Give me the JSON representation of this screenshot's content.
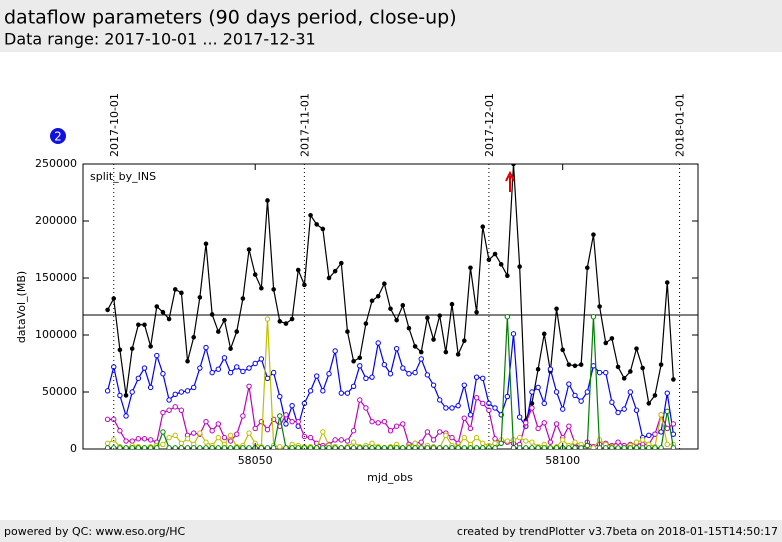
{
  "header": {
    "title": "dataflow parameters (90 days period, close-up)",
    "subtitle": "Data range: 2017-10-01 ... 2017-12-31"
  },
  "badge": "2",
  "footer": {
    "left": "powered by QC: www.eso.org/HC",
    "right": "created by trendPlotter v3.7beta on 2018-01-15T14:50:17"
  },
  "chart_data": {
    "type": "line",
    "xlabel": "mjd_obs",
    "ylabel": "dataVol_(MB)",
    "annotation": "split_by_INS",
    "xlim": [
      58022,
      58122
    ],
    "xticks": [
      58050,
      58100
    ],
    "ylim": [
      0,
      250000
    ],
    "yticks": [
      0,
      50000,
      100000,
      150000,
      200000,
      250000
    ],
    "hline": 117500,
    "date_markers": [
      {
        "label": "2017-10-01",
        "x": 58027
      },
      {
        "label": "2017-11-01",
        "x": 58058
      },
      {
        "label": "2017-12-01",
        "x": 58088
      },
      {
        "label": "2018-01-01",
        "x": 58119
      }
    ],
    "x": [
      58026,
      58027,
      58028,
      58029,
      58030,
      58031,
      58032,
      58033,
      58034,
      58035,
      58036,
      58037,
      58038,
      58039,
      58040,
      58041,
      58042,
      58043,
      58044,
      58045,
      58046,
      58047,
      58048,
      58049,
      58050,
      58051,
      58052,
      58053,
      58054,
      58055,
      58056,
      58057,
      58058,
      58059,
      58060,
      58061,
      58062,
      58063,
      58064,
      58065,
      58066,
      58067,
      58068,
      58069,
      58070,
      58071,
      58072,
      58073,
      58074,
      58075,
      58076,
      58077,
      58078,
      58079,
      58080,
      58081,
      58082,
      58083,
      58084,
      58085,
      58086,
      58087,
      58088,
      58089,
      58090,
      58091,
      58092,
      58093,
      58094,
      58095,
      58096,
      58097,
      58098,
      58099,
      58100,
      58101,
      58102,
      58103,
      58104,
      58105,
      58106,
      58107,
      58108,
      58109,
      58110,
      58111,
      58112,
      58113,
      58114,
      58115,
      58116,
      58117,
      58118
    ],
    "series": [
      {
        "color": "#000000",
        "filled": true,
        "values": [
          122000,
          132000,
          87000,
          47000,
          88000,
          109000,
          109000,
          90000,
          125000,
          120000,
          114000,
          140000,
          137000,
          77000,
          98000,
          133000,
          180000,
          118000,
          103000,
          113000,
          88000,
          103000,
          132000,
          175000,
          153000,
          141000,
          218000,
          140000,
          112000,
          110000,
          114000,
          157000,
          144000,
          205000,
          197000,
          193000,
          150000,
          156000,
          163000,
          103000,
          77000,
          80000,
          110000,
          130000,
          134000,
          145000,
          123000,
          113000,
          126000,
          106000,
          90000,
          85000,
          115000,
          96000,
          117000,
          85000,
          127000,
          83000,
          95000,
          159000,
          120000,
          195000,
          166000,
          171000,
          162000,
          152000,
          250000,
          160000,
          25000,
          40000,
          70000,
          101000,
          68000,
          123000,
          87000,
          74000,
          73000,
          74000,
          159000,
          188000,
          125000,
          93000,
          97000,
          72000,
          62000,
          68000,
          88000,
          71000,
          40000,
          47000,
          74000,
          146000,
          61000
        ]
      },
      {
        "color": "#0000ff",
        "filled": false,
        "values": [
          51000,
          72000,
          47000,
          29000,
          50000,
          62000,
          71000,
          54000,
          82000,
          66000,
          43000,
          48000,
          50000,
          51000,
          54000,
          71000,
          89000,
          67000,
          70000,
          80000,
          67000,
          72000,
          68000,
          71000,
          75000,
          79000,
          62000,
          67000,
          46000,
          22000,
          38000,
          20000,
          40000,
          51000,
          64000,
          51000,
          66000,
          86000,
          49000,
          49000,
          55000,
          73000,
          62000,
          63000,
          93000,
          74000,
          66000,
          88000,
          71000,
          66000,
          67000,
          79000,
          65000,
          56000,
          43000,
          36000,
          36000,
          38000,
          56000,
          30000,
          63000,
          62000,
          40000,
          36000,
          30000,
          46000,
          101000,
          28000,
          20000,
          50000,
          54000,
          40000,
          70000,
          50000,
          35000,
          57000,
          47000,
          42000,
          50000,
          73000,
          67000,
          67000,
          41000,
          32000,
          35000,
          50000,
          34000,
          10000,
          12000,
          13000,
          15000,
          49000,
          13000
        ]
      },
      {
        "color": "#bf00bf",
        "filled": false,
        "values": [
          26000,
          26000,
          16000,
          7000,
          7000,
          9000,
          9000,
          8000,
          6000,
          32000,
          34000,
          37000,
          34000,
          12000,
          14000,
          13000,
          24000,
          16000,
          22000,
          10000,
          7000,
          13000,
          29000,
          55000,
          18000,
          24000,
          17000,
          26000,
          20000,
          30000,
          24000,
          24000,
          11000,
          10000,
          5000,
          3000,
          4000,
          8000,
          8000,
          7000,
          16000,
          43000,
          36000,
          24000,
          23000,
          24000,
          16000,
          20000,
          22000,
          4000,
          5000,
          6000,
          15000,
          8000,
          15000,
          14000,
          10000,
          5000,
          27000,
          18000,
          45000,
          40000,
          34000,
          9000,
          6000,
          6000,
          5000,
          4000,
          23000,
          36000,
          18000,
          23000,
          6000,
          22000,
          10000,
          20000,
          5000,
          0,
          6000,
          2000,
          4000,
          5000,
          3000,
          6000,
          3000,
          4000,
          5000,
          4000,
          4000,
          13000,
          30000,
          18000,
          22000
        ]
      },
      {
        "color": "#bfbf00",
        "filled": false,
        "values": [
          5000,
          8000,
          2000,
          1000,
          3000,
          2000,
          1000,
          2000,
          3000,
          4000,
          10000,
          12000,
          5000,
          9000,
          4000,
          14000,
          6000,
          3000,
          10000,
          4000,
          12000,
          2000,
          3000,
          14000,
          5000,
          2000,
          114000,
          3000,
          2000,
          1000,
          4000,
          3000,
          2000,
          2000,
          1000,
          15000,
          3000,
          2000,
          1000,
          2000,
          6000,
          2000,
          3000,
          5000,
          2000,
          1000,
          2000,
          4000,
          1000,
          2000,
          5000,
          1000,
          3000,
          2000,
          1000,
          12000,
          3000,
          2000,
          10000,
          4000,
          10000,
          5000,
          3000,
          5000,
          8000,
          7000,
          8000,
          10000,
          7000,
          6000,
          2000,
          4000,
          1000,
          2000,
          8000,
          3000,
          6000,
          4000,
          3000,
          1000,
          8000,
          4000,
          2000,
          1000,
          1000,
          3000,
          6000,
          8000,
          4000,
          2000,
          30000,
          4000,
          4000
        ]
      },
      {
        "color": "#008000",
        "filled": false,
        "values": [
          1000,
          1000,
          1000,
          1000,
          1000,
          1000,
          1000,
          1000,
          1000,
          15000,
          1000,
          1000,
          1000,
          1000,
          1000,
          1000,
          1000,
          1000,
          1000,
          1000,
          1000,
          1000,
          1000,
          1000,
          1000,
          1000,
          1000,
          1000,
          29000,
          1000,
          1000,
          1000,
          1000,
          1000,
          1000,
          1000,
          1000,
          1000,
          1000,
          1000,
          1000,
          1000,
          1000,
          1000,
          1000,
          1000,
          1000,
          1000,
          1000,
          1000,
          1000,
          1000,
          1000,
          1000,
          1000,
          1000,
          1000,
          1000,
          1000,
          1000,
          1000,
          1000,
          1000,
          1000,
          5000,
          116000,
          1000,
          1000,
          1000,
          1000,
          1000,
          1000,
          1000,
          1000,
          1000,
          1000,
          1000,
          1000,
          3000,
          116000,
          1000,
          1000,
          1000,
          1000,
          1000,
          1000,
          1000,
          1000,
          1000,
          1000,
          1000,
          33000,
          1000
        ]
      }
    ]
  }
}
